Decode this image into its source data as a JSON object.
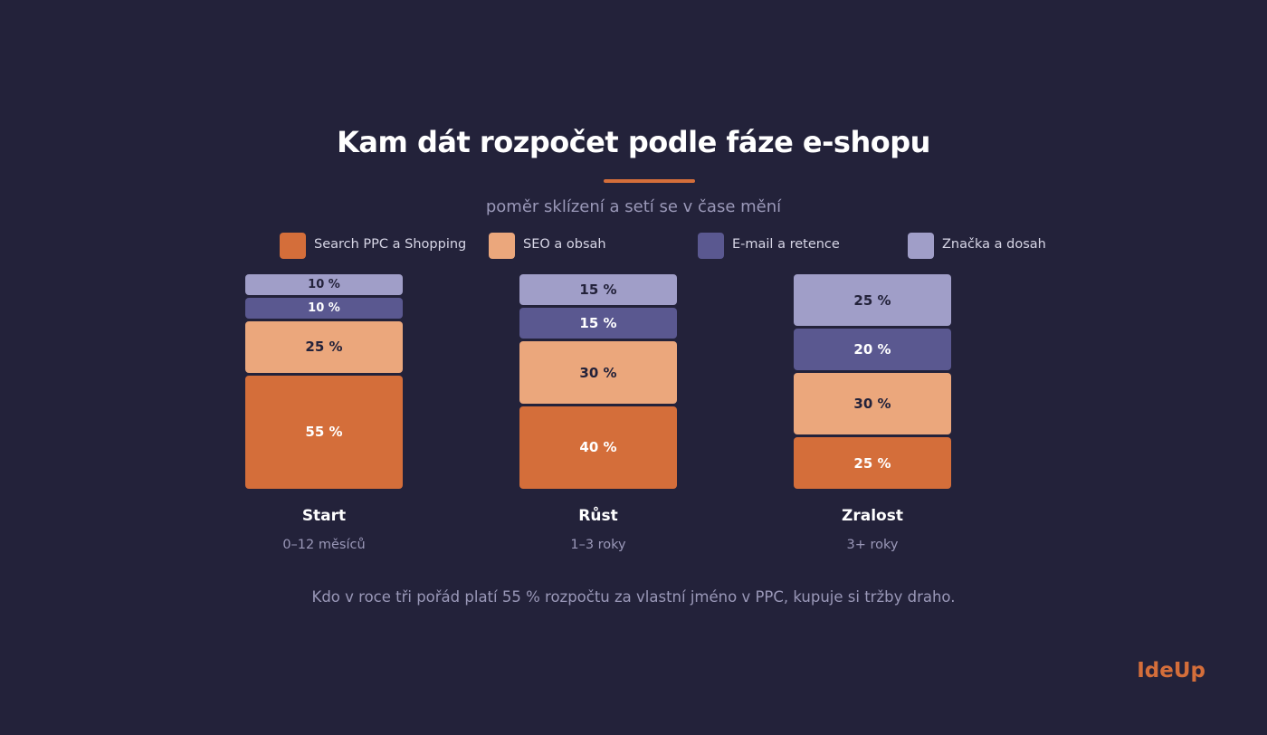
{
  "header": {
    "title": "Kam dát rozpočet podle fáze e-shopu",
    "subtitle": "poměr sklízení a setí se v čase mění"
  },
  "legend": [
    {
      "label": "Search PPC a Shopping",
      "color": "#d46e3a"
    },
    {
      "label": "SEO a obsah",
      "color": "#eba77c"
    },
    {
      "label": "E-mail a retence",
      "color": "#5a5890"
    },
    {
      "label": "Značka a dosah",
      "color": "#a09ec8"
    }
  ],
  "chart_data": {
    "type": "bar",
    "stacked": true,
    "unit": "%",
    "categories": [
      "Start",
      "Růst",
      "Zralost"
    ],
    "category_subtitles": [
      "0–12 měsíců",
      "1–3 roky",
      "3+ roky"
    ],
    "series": [
      {
        "name": "Search PPC a Shopping",
        "values": [
          55,
          40,
          25
        ],
        "color": "#d46e3a",
        "label_color": "#ffffff"
      },
      {
        "name": "SEO a obsah",
        "values": [
          25,
          30,
          30
        ],
        "color": "#eba77c",
        "label_color": "#23223a"
      },
      {
        "name": "E-mail a retence",
        "values": [
          10,
          15,
          20
        ],
        "color": "#5a5890",
        "label_color": "#ffffff"
      },
      {
        "name": "Značka a dosah",
        "values": [
          10,
          15,
          25
        ],
        "color": "#a09ec8",
        "label_color": "#23223a"
      }
    ],
    "value_labels": [
      [
        "55 %",
        "40 %",
        "25 %"
      ],
      [
        "25 %",
        "30 %",
        "30 %"
      ],
      [
        "10 %",
        "15 %",
        "20 %"
      ],
      [
        "10 %",
        "15 %",
        "25 %"
      ]
    ],
    "ylim": [
      0,
      100
    ],
    "grid": false,
    "legend_position": "top"
  },
  "footer": {
    "note": "Kdo v roce tři pořád platí 55 % rozpočtu za vlastní jméno v PPC, kupuje si tržby draho."
  },
  "brand": {
    "name": "IdeUp"
  }
}
